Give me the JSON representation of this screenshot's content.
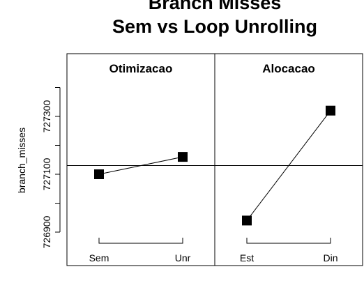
{
  "chart_data": {
    "type": "line",
    "title_lines": [
      "Branch Misses",
      "Sem vs Loop Unrolling"
    ],
    "ylabel": "branch_misses",
    "ylim": [
      726820,
      727420
    ],
    "y_ticks": [
      726900,
      727000,
      727100,
      727200,
      727300,
      727400
    ],
    "y_tick_labels": [
      "726900",
      "727100",
      "727300"
    ],
    "y_tick_label_values": [
      726900,
      727100,
      727300
    ],
    "grand_mean": 727130,
    "grid": false,
    "panels": [
      {
        "name": "Otimizacao",
        "categories": [
          "Sem",
          "Unr"
        ],
        "values": [
          727100,
          727160
        ]
      },
      {
        "name": "Alocacao",
        "categories": [
          "Est",
          "Din"
        ],
        "values": [
          726940,
          727320
        ]
      }
    ],
    "colors": {
      "line": "#000000",
      "marker": "#000000",
      "frame": "#000000"
    }
  }
}
